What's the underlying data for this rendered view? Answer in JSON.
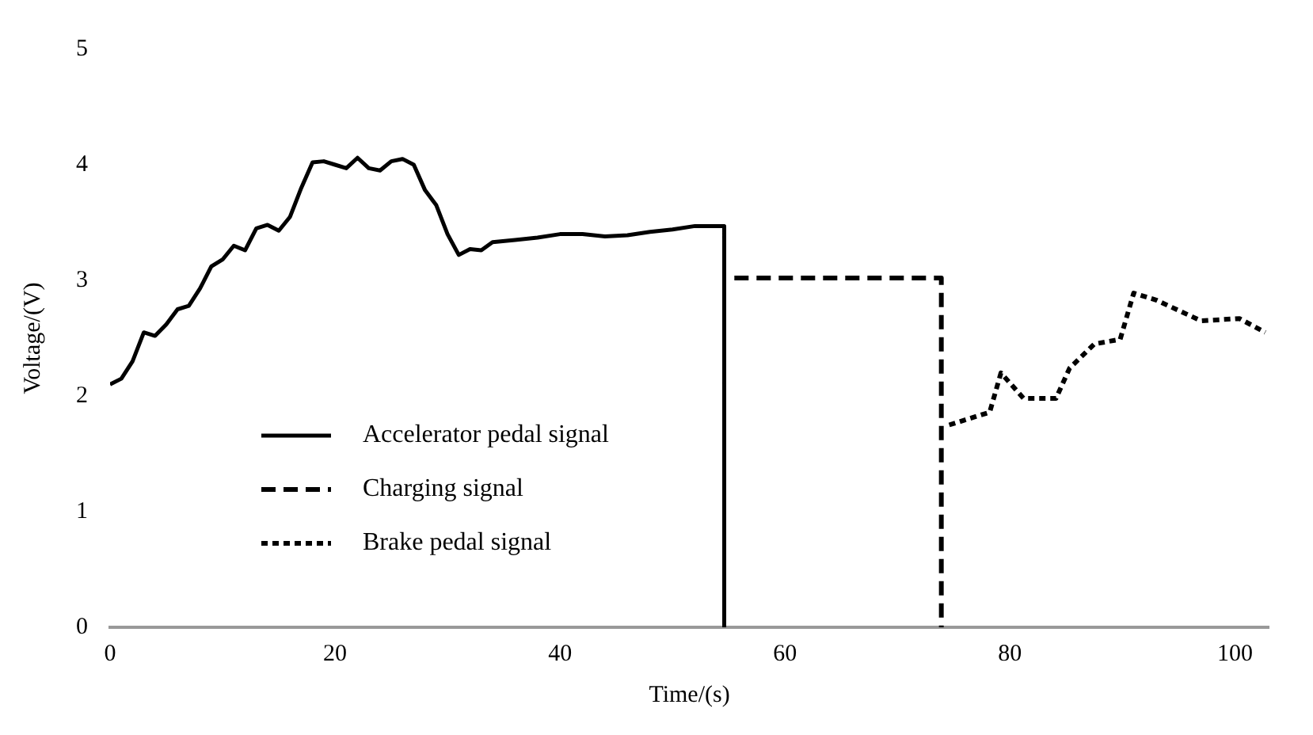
{
  "chart_data": {
    "type": "line",
    "xlabel": "Time/(s)",
    "ylabel": "Voltage/(V)",
    "xlim": [
      0,
      103
    ],
    "xticks": [
      0,
      20,
      40,
      60,
      80,
      100
    ],
    "ylim": [
      0,
      5
    ],
    "yticks": [
      0,
      1,
      2,
      3,
      4,
      5
    ],
    "grid": false,
    "legend": "bottom left",
    "marker": "none",
    "series": [
      {
        "name": "Accelerator pedal signal",
        "color": "#000000",
        "line_style": "solid",
        "x": [
          0,
          1,
          2,
          3,
          4,
          5,
          6,
          7,
          8,
          9,
          10,
          11,
          12,
          13,
          14,
          15,
          16,
          17,
          18,
          19,
          20,
          21,
          22,
          23,
          24,
          25,
          26,
          27,
          28,
          29,
          30,
          31,
          32,
          33,
          34,
          36,
          38,
          40,
          42,
          44,
          46,
          48,
          50,
          52,
          54.6,
          54.6
        ],
        "values": [
          2.1,
          2.15,
          2.3,
          2.55,
          2.52,
          2.62,
          2.75,
          2.78,
          2.93,
          3.12,
          3.18,
          3.3,
          3.26,
          3.45,
          3.48,
          3.43,
          3.55,
          3.8,
          4.02,
          4.03,
          4.0,
          3.97,
          4.06,
          3.97,
          3.95,
          4.03,
          4.05,
          4.0,
          3.78,
          3.65,
          3.4,
          3.22,
          3.27,
          3.26,
          3.33,
          3.35,
          3.37,
          3.4,
          3.4,
          3.38,
          3.39,
          3.42,
          3.44,
          3.47,
          3.47,
          0
        ]
      },
      {
        "name": "Charging signal",
        "color": "#000000",
        "line_style": "dashed",
        "x": [
          55.5,
          73.9,
          73.9
        ],
        "values": [
          3.02,
          3.02,
          0
        ]
      },
      {
        "name": "Brake pedal signal",
        "color": "#000000",
        "line_style": "dotted",
        "x": [
          74.6,
          78.2,
          79.2,
          81.2,
          84.1,
          85.3,
          87.5,
          89.8,
          91,
          93,
          97,
          100.4,
          102.7
        ],
        "values": [
          1.75,
          1.86,
          2.2,
          1.98,
          1.98,
          2.24,
          2.45,
          2.49,
          2.89,
          2.83,
          2.65,
          2.67,
          2.55
        ]
      }
    ]
  }
}
